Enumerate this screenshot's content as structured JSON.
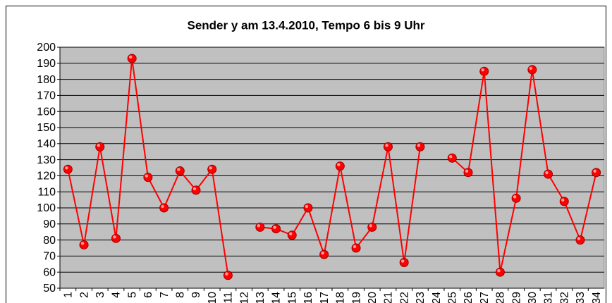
{
  "chart_data": {
    "type": "line",
    "title": "Sender y am 13.4.2010, Tempo 6 bis 9 Uhr",
    "categories": [
      "1",
      "2",
      "3",
      "4",
      "5",
      "6",
      "7",
      "8",
      "9",
      "10",
      "11",
      "12",
      "13",
      "14",
      "15",
      "16",
      "17",
      "18",
      "19",
      "20",
      "21",
      "22",
      "23",
      "24",
      "25",
      "26",
      "27",
      "28",
      "29",
      "30",
      "31",
      "32",
      "33",
      "34"
    ],
    "series": [
      {
        "color": "#ff0000",
        "values": [
          124,
          77,
          138,
          81,
          193,
          119,
          100,
          123,
          111,
          124,
          58,
          null,
          88,
          87,
          83,
          100,
          71,
          126,
          75,
          88,
          138,
          66,
          138,
          null,
          131,
          122,
          185,
          60,
          106,
          186,
          121,
          104,
          80,
          122
        ]
      }
    ],
    "ylim": [
      50,
      200
    ],
    "yticks": [
      50,
      60,
      70,
      80,
      90,
      100,
      110,
      120,
      130,
      140,
      150,
      160,
      170,
      180,
      190,
      200
    ],
    "grid": true,
    "plot_background": "#c0c0c0"
  }
}
